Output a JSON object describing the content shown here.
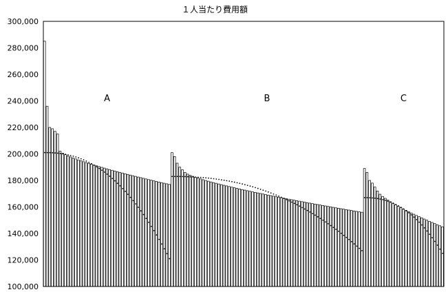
{
  "chart_data": {
    "type": "bar",
    "title": "１人当たり費用額",
    "ylim": [
      100000,
      300000
    ],
    "yticks": [
      "100,000",
      "120,000",
      "140,000",
      "160,000",
      "180,000",
      "200,000",
      "220,000",
      "240,000",
      "260,000",
      "280,000",
      "300,000"
    ],
    "grid": false,
    "groups": [
      {
        "label": "A",
        "count": 49,
        "values_fixed": [
          285000,
          236000,
          220000,
          219000,
          217000,
          215000
        ],
        "start": 202000,
        "end": 177000,
        "dot_start": 201000,
        "dot_end": 121000
      },
      {
        "label": "B",
        "count": 74,
        "values_fixed": [
          201000,
          198000,
          193000,
          190000,
          188000
        ],
        "start": 186000,
        "end": 156000,
        "dot_start": 183000,
        "dot_end": 127000
      },
      {
        "label": "C",
        "count": 31,
        "values_fixed": [
          189000,
          186000,
          180000,
          178000,
          175000
        ],
        "start": 172000,
        "end": 145000,
        "dot_start": 167000,
        "dot_end": 125000
      }
    ]
  }
}
